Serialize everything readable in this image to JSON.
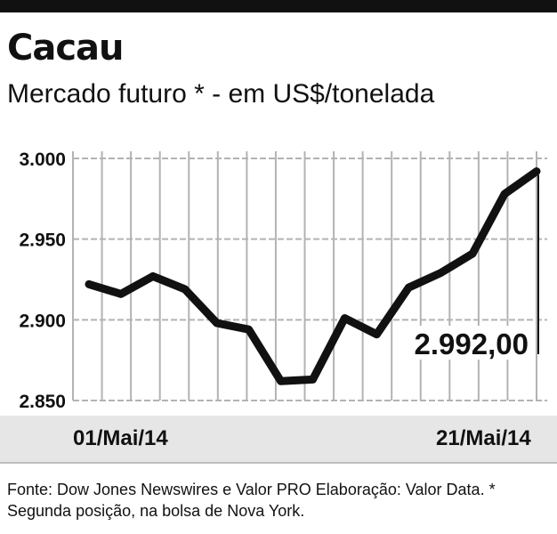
{
  "header": {
    "title": "Cacau",
    "subtitle": "Mercado futuro * - em US$/tonelada"
  },
  "chart_data": {
    "type": "line",
    "title": "Cacau",
    "subtitle": "Mercado futuro * - em US$/tonelada",
    "ylim": [
      2850,
      3000
    ],
    "yticks": [
      3000,
      2950,
      2900,
      2850
    ],
    "ytick_labels": [
      "3.000",
      "2.950",
      "2.900",
      "2.850"
    ],
    "xlabel_start": "01/Mai/14",
    "xlabel_end": "21/Mai/14",
    "series": [
      {
        "values": [
          2922,
          2916,
          2927,
          2919,
          2898,
          2894,
          2862,
          2863,
          2901,
          2891,
          2920,
          2929,
          2941,
          2978,
          2992
        ]
      }
    ],
    "last_value_label": "2.992,00",
    "grid": true,
    "line_color": "#111111",
    "grid_color": "#b3b3b3"
  },
  "footer": {
    "source": "Fonte: Dow Jones Newswires e Valor PRO Elaboração: Valor Data. * Segunda posição, na bolsa de Nova York."
  }
}
